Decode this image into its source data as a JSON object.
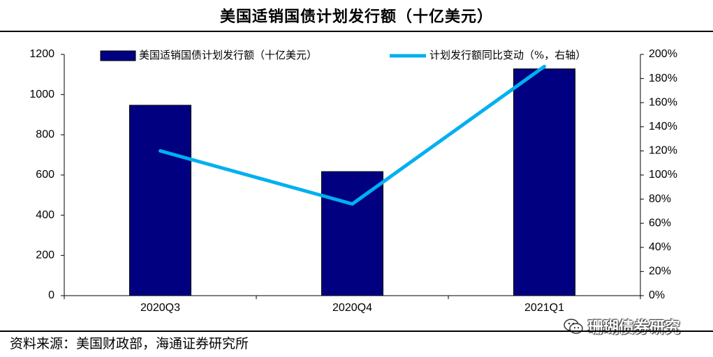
{
  "title": "美国适销国债计划发行额（十亿美元）",
  "source": "资料来源：美国财政部，海通证券研究所",
  "watermark": "珊瑚债券研究",
  "colors": {
    "bar": "#000080",
    "line": "#00B0F0",
    "axis": "#000000"
  },
  "chart_data": {
    "type": "bar+line",
    "categories": [
      "2020Q3",
      "2020Q4",
      "2021Q1"
    ],
    "series": [
      {
        "name": "美国适销国债计划发行额（十亿美元）",
        "type": "bar",
        "axis": "left",
        "values": [
          947,
          617,
          1128
        ]
      },
      {
        "name": "计划发行额同比变动（%，右轴）",
        "type": "line",
        "axis": "right",
        "values": [
          120,
          76,
          190
        ]
      }
    ],
    "left_axis": {
      "min": 0,
      "max": 1200,
      "ticks": [
        "0",
        "200",
        "400",
        "600",
        "800",
        "1000",
        "1200"
      ]
    },
    "right_axis": {
      "min": 0,
      "max": 200,
      "ticks": [
        "0%",
        "20%",
        "40%",
        "60%",
        "80%",
        "100%",
        "120%",
        "140%",
        "160%",
        "180%",
        "200%"
      ]
    },
    "legend_position": "top"
  }
}
